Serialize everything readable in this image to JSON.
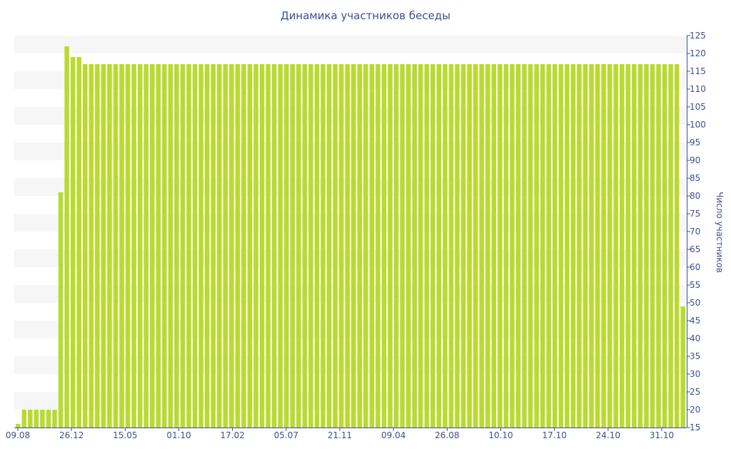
{
  "chart_data": {
    "type": "bar",
    "title": "Динамика участников беседы",
    "ylabel": "Число участников",
    "xlabel": "",
    "ylim": [
      15,
      125
    ],
    "y_ticks": [
      15,
      20,
      25,
      30,
      35,
      40,
      45,
      50,
      55,
      60,
      65,
      70,
      75,
      80,
      85,
      90,
      95,
      100,
      105,
      110,
      115,
      120,
      125
    ],
    "x_tick_labels": [
      "09.08",
      "26.12",
      "15.05",
      "01.10",
      "17.02",
      "05.07",
      "21.11",
      "09.04",
      "26.08",
      "10.10",
      "17.10",
      "24.10",
      "31.10"
    ],
    "grid": "alternating horizontal bands",
    "bar_color": "#bada2f",
    "values": [
      16,
      20,
      20,
      20,
      20,
      20,
      20,
      81,
      122,
      119,
      119,
      117,
      117,
      117,
      117,
      117,
      117,
      117,
      117,
      117,
      117,
      117,
      117,
      117,
      117,
      117,
      117,
      117,
      117,
      117,
      117,
      117,
      117,
      117,
      117,
      117,
      117,
      117,
      117,
      117,
      117,
      117,
      117,
      117,
      117,
      117,
      117,
      117,
      117,
      117,
      117,
      117,
      117,
      117,
      117,
      117,
      117,
      117,
      117,
      117,
      117,
      117,
      117,
      117,
      117,
      117,
      117,
      117,
      117,
      117,
      117,
      117,
      117,
      117,
      117,
      117,
      117,
      117,
      117,
      117,
      117,
      117,
      117,
      117,
      117,
      117,
      117,
      117,
      117,
      117,
      117,
      117,
      117,
      117,
      117,
      117,
      117,
      117,
      117,
      117,
      117,
      117,
      117,
      117,
      117,
      117,
      117,
      117,
      117,
      49
    ]
  }
}
